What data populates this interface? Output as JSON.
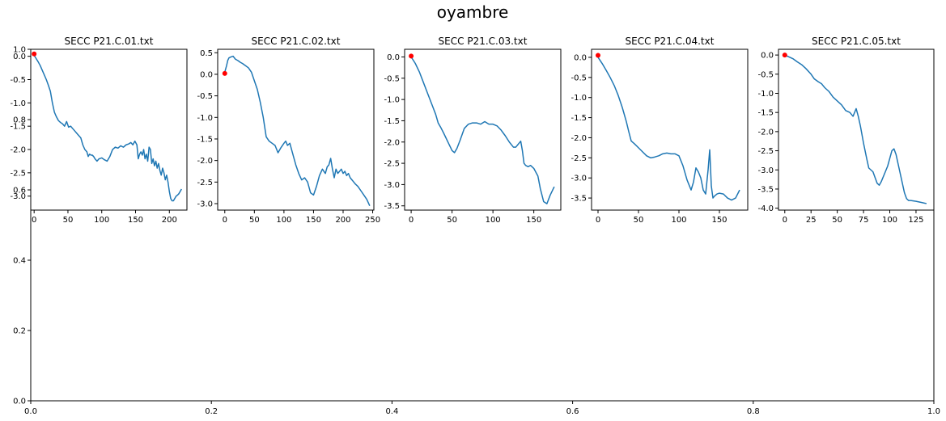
{
  "figure": {
    "title": "oyambre",
    "background_axis": {
      "xticks": [
        "0.0",
        "0.2",
        "0.4",
        "0.6",
        "0.8",
        "1.0"
      ],
      "yticks": [
        "0.0",
        "0.2",
        "0.4",
        "0.6",
        "0.8",
        "1.0"
      ]
    }
  },
  "chart_data": [
    {
      "type": "line",
      "title": "SECC P21.C.01.txt",
      "xlim": [
        -5,
        226
      ],
      "ylim": [
        -3.3,
        0.15
      ],
      "xticks": [
        0,
        50,
        100,
        150,
        200
      ],
      "yticks": [
        0.0,
        -0.5,
        -1.0,
        -1.5,
        -2.0,
        -2.5,
        -3.0
      ],
      "color": "#1f77b4",
      "marker": {
        "x": 0,
        "y": 0.05,
        "color": "#ff0000"
      },
      "x": [
        0,
        3,
        6,
        9,
        12,
        15,
        18,
        21,
        24,
        27,
        30,
        33,
        36,
        39,
        42,
        45,
        48,
        51,
        54,
        57,
        60,
        63,
        66,
        69,
        72,
        75,
        78,
        80,
        82,
        84,
        86,
        88,
        90,
        93,
        96,
        100,
        104,
        108,
        112,
        116,
        120,
        124,
        128,
        132,
        136,
        140,
        143,
        146,
        149,
        152,
        154,
        156,
        158,
        160,
        162,
        164,
        166,
        168,
        170,
        172,
        174,
        176,
        178,
        180,
        182,
        184,
        186,
        188,
        190,
        192,
        194,
        196,
        198,
        200,
        202,
        204,
        206,
        208,
        210,
        212,
        214,
        216,
        218
      ],
      "y": [
        0.02,
        -0.05,
        -0.12,
        -0.2,
        -0.3,
        -0.4,
        -0.5,
        -0.62,
        -0.75,
        -1.0,
        -1.2,
        -1.3,
        -1.38,
        -1.42,
        -1.45,
        -1.5,
        -1.4,
        -1.52,
        -1.5,
        -1.55,
        -1.6,
        -1.65,
        -1.7,
        -1.75,
        -1.9,
        -2.0,
        -2.05,
        -2.15,
        -2.1,
        -2.12,
        -2.12,
        -2.15,
        -2.2,
        -2.25,
        -2.2,
        -2.18,
        -2.22,
        -2.25,
        -2.15,
        -2.0,
        -1.95,
        -1.97,
        -1.92,
        -1.95,
        -1.9,
        -1.88,
        -1.85,
        -1.9,
        -1.82,
        -1.9,
        -2.2,
        -2.1,
        -2.05,
        -2.12,
        -2.0,
        -2.2,
        -2.1,
        -2.25,
        -1.95,
        -2.0,
        -2.3,
        -2.2,
        -2.35,
        -2.25,
        -2.4,
        -2.3,
        -2.45,
        -2.55,
        -2.4,
        -2.5,
        -2.65,
        -2.55,
        -2.7,
        -2.9,
        -3.05,
        -3.1,
        -3.1,
        -3.05,
        -3.0,
        -2.98,
        -2.95,
        -2.9,
        -2.85
      ]
    },
    {
      "type": "line",
      "title": "SECC P21.C.02.txt",
      "xlim": [
        -12,
        252
      ],
      "ylim": [
        -3.15,
        0.58
      ],
      "xticks": [
        0,
        50,
        100,
        150,
        200,
        250
      ],
      "yticks": [
        0.5,
        0.0,
        -0.5,
        -1.0,
        -1.5,
        -2.0,
        -2.5,
        -3.0
      ],
      "color": "#1f77b4",
      "marker": {
        "x": 0,
        "y": 0.02,
        "color": "#ff0000"
      },
      "x": [
        0,
        3,
        5,
        7,
        10,
        14,
        18,
        22,
        26,
        30,
        35,
        40,
        45,
        50,
        55,
        60,
        65,
        70,
        75,
        80,
        85,
        90,
        95,
        100,
        103,
        106,
        110,
        115,
        120,
        125,
        130,
        135,
        140,
        145,
        150,
        155,
        160,
        165,
        170,
        173,
        176,
        179,
        182,
        185,
        188,
        191,
        194,
        197,
        200,
        203,
        206,
        209,
        212,
        215,
        218,
        221,
        225,
        230,
        235,
        240,
        245
      ],
      "y": [
        0.05,
        0.2,
        0.32,
        0.38,
        0.4,
        0.42,
        0.35,
        0.32,
        0.28,
        0.25,
        0.2,
        0.15,
        0.05,
        -0.15,
        -0.35,
        -0.65,
        -1.0,
        -1.45,
        -1.55,
        -1.6,
        -1.65,
        -1.82,
        -1.7,
        -1.6,
        -1.55,
        -1.65,
        -1.6,
        -1.85,
        -2.1,
        -2.3,
        -2.45,
        -2.4,
        -2.5,
        -2.75,
        -2.8,
        -2.6,
        -2.35,
        -2.2,
        -2.3,
        -2.15,
        -2.1,
        -1.95,
        -2.2,
        -2.4,
        -2.2,
        -2.3,
        -2.25,
        -2.2,
        -2.3,
        -2.25,
        -2.35,
        -2.3,
        -2.4,
        -2.45,
        -2.5,
        -2.55,
        -2.6,
        -2.7,
        -2.8,
        -2.9,
        -3.05
      ]
    },
    {
      "type": "line",
      "title": "SECC P21.C.03.txt",
      "xlim": [
        -8,
        183
      ],
      "ylim": [
        -3.6,
        0.18
      ],
      "xticks": [
        0,
        50,
        100,
        150
      ],
      "yticks": [
        0.0,
        -0.5,
        -1.0,
        -1.5,
        -2.0,
        -2.5,
        -3.0,
        -3.5
      ],
      "color": "#1f77b4",
      "marker": {
        "x": 0,
        "y": 0.02,
        "color": "#ff0000"
      },
      "x": [
        0,
        5,
        10,
        15,
        20,
        25,
        30,
        33,
        36,
        40,
        45,
        50,
        53,
        56,
        60,
        65,
        70,
        75,
        80,
        85,
        90,
        95,
        100,
        105,
        110,
        115,
        120,
        125,
        128,
        131,
        134,
        136,
        138,
        140,
        143,
        146,
        150,
        155,
        158,
        162,
        166,
        170,
        175
      ],
      "y": [
        0.0,
        -0.15,
        -0.35,
        -0.6,
        -0.85,
        -1.1,
        -1.35,
        -1.55,
        -1.65,
        -1.8,
        -2.0,
        -2.2,
        -2.25,
        -2.15,
        -1.95,
        -1.68,
        -1.58,
        -1.55,
        -1.55,
        -1.58,
        -1.52,
        -1.58,
        -1.58,
        -1.62,
        -1.72,
        -1.85,
        -2.0,
        -2.12,
        -2.12,
        -2.05,
        -1.98,
        -2.2,
        -2.5,
        -2.55,
        -2.58,
        -2.55,
        -2.62,
        -2.8,
        -3.1,
        -3.4,
        -3.45,
        -3.25,
        -3.05
      ]
    },
    {
      "type": "line",
      "title": "SECC P21.C.04.txt",
      "xlim": [
        -8,
        185
      ],
      "ylim": [
        -3.8,
        0.2
      ],
      "xticks": [
        0,
        50,
        100,
        150
      ],
      "yticks": [
        0.0,
        -0.5,
        -1.0,
        -1.5,
        -2.0,
        -2.5,
        -3.0,
        -3.5
      ],
      "color": "#1f77b4",
      "marker": {
        "x": 0,
        "y": 0.05,
        "color": "#ff0000"
      },
      "x": [
        0,
        5,
        10,
        15,
        20,
        25,
        30,
        35,
        38,
        41,
        45,
        50,
        55,
        60,
        65,
        70,
        75,
        80,
        85,
        90,
        95,
        100,
        105,
        110,
        115,
        118,
        121,
        124,
        127,
        130,
        133,
        136,
        138,
        140,
        142,
        144,
        147,
        150,
        155,
        160,
        165,
        170,
        175
      ],
      "y": [
        0.0,
        -0.15,
        -0.32,
        -0.5,
        -0.7,
        -0.95,
        -1.25,
        -1.6,
        -1.85,
        -2.08,
        -2.15,
        -2.25,
        -2.35,
        -2.45,
        -2.5,
        -2.48,
        -2.45,
        -2.4,
        -2.38,
        -2.4,
        -2.4,
        -2.45,
        -2.7,
        -3.05,
        -3.3,
        -3.1,
        -2.75,
        -2.85,
        -3.0,
        -3.3,
        -3.4,
        -2.8,
        -2.3,
        -3.2,
        -3.5,
        -3.45,
        -3.4,
        -3.38,
        -3.4,
        -3.5,
        -3.55,
        -3.5,
        -3.3
      ]
    },
    {
      "type": "line",
      "title": "SECC P21.C.05.txt",
      "xlim": [
        -6,
        142
      ],
      "ylim": [
        -4.05,
        0.15
      ],
      "xticks": [
        0,
        25,
        50,
        75,
        100,
        125
      ],
      "yticks": [
        0.0,
        -0.5,
        -1.0,
        -1.5,
        -2.0,
        -2.5,
        -3.0,
        -3.5,
        -4.0
      ],
      "color": "#1f77b4",
      "marker": {
        "x": 0,
        "y": 0.0,
        "color": "#ff0000"
      },
      "x": [
        0,
        4,
        8,
        12,
        16,
        20,
        25,
        28,
        32,
        35,
        38,
        42,
        46,
        50,
        54,
        58,
        62,
        65,
        68,
        70,
        72,
        75,
        78,
        80,
        82,
        84,
        86,
        88,
        90,
        92,
        95,
        98,
        100,
        102,
        104,
        106,
        108,
        110,
        112,
        114,
        116,
        118,
        120,
        125,
        130,
        135
      ],
      "y": [
        0.0,
        -0.05,
        -0.1,
        -0.18,
        -0.25,
        -0.35,
        -0.5,
        -0.62,
        -0.7,
        -0.75,
        -0.85,
        -0.95,
        -1.1,
        -1.2,
        -1.3,
        -1.45,
        -1.5,
        -1.6,
        -1.4,
        -1.6,
        -1.85,
        -2.3,
        -2.7,
        -2.95,
        -3.0,
        -3.05,
        -3.2,
        -3.35,
        -3.4,
        -3.3,
        -3.1,
        -2.9,
        -2.7,
        -2.5,
        -2.45,
        -2.6,
        -2.85,
        -3.1,
        -3.35,
        -3.6,
        -3.75,
        -3.8,
        -3.8,
        -3.82,
        -3.85,
        -3.88
      ]
    }
  ]
}
